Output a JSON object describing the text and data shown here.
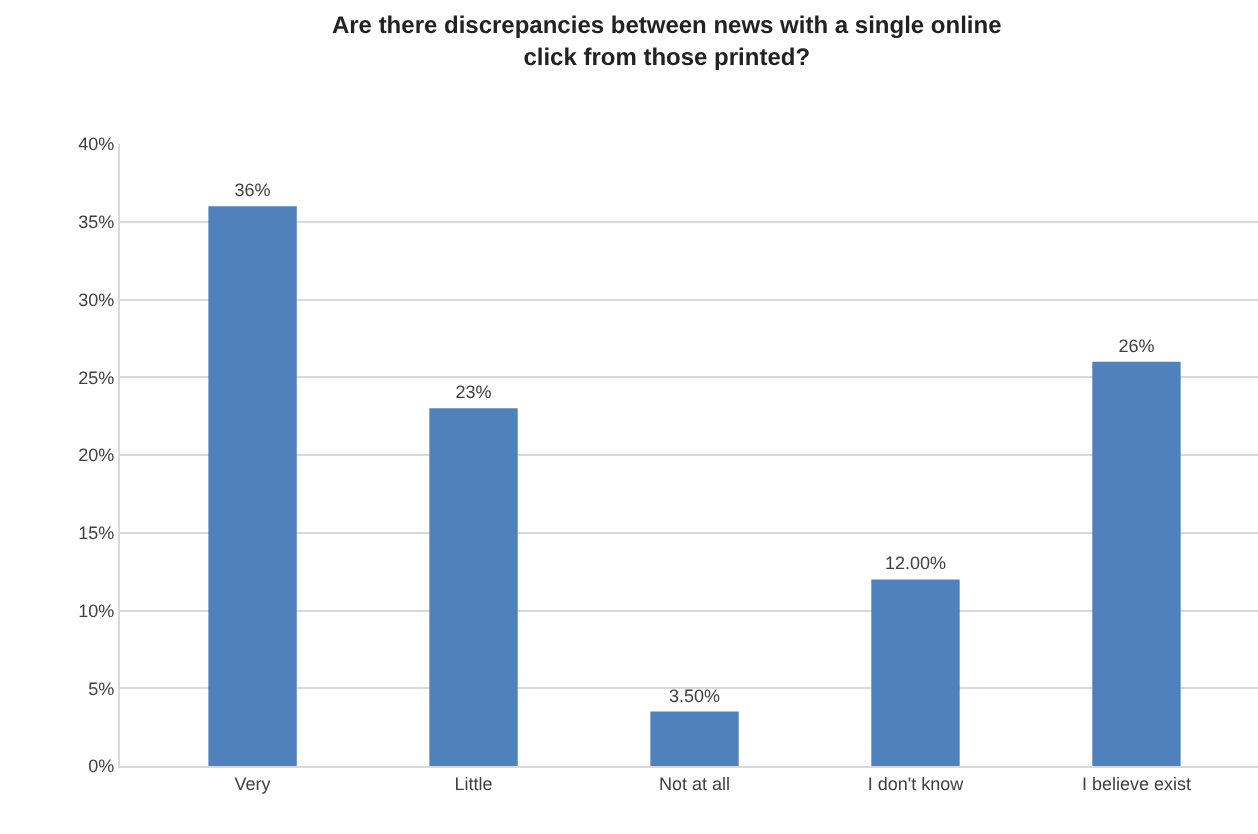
{
  "chart_data": {
    "type": "bar",
    "title": "Are there discrepancies between news with a single online\nclick from those printed?",
    "categories": [
      "Very",
      "Little",
      "Not at all",
      "I don't know",
      "I believe exist"
    ],
    "values": [
      36,
      23,
      3.5,
      12,
      26
    ],
    "value_labels": [
      "36%",
      "23%",
      "3.50%",
      "12.00%",
      "26%"
    ],
    "color": "#4f81bd",
    "ylim": [
      0,
      40
    ],
    "yticks": [
      {
        "value": 0,
        "label": "0%"
      },
      {
        "value": 5,
        "label": "5%"
      },
      {
        "value": 10,
        "label": "10%"
      },
      {
        "value": 15,
        "label": "15%"
      },
      {
        "value": 20,
        "label": "20%"
      },
      {
        "value": 25,
        "label": "25%"
      },
      {
        "value": 30,
        "label": "30%"
      },
      {
        "value": 35,
        "label": "35%"
      },
      {
        "value": 40,
        "label": "40%"
      }
    ],
    "grid": "y",
    "legend": false
  }
}
